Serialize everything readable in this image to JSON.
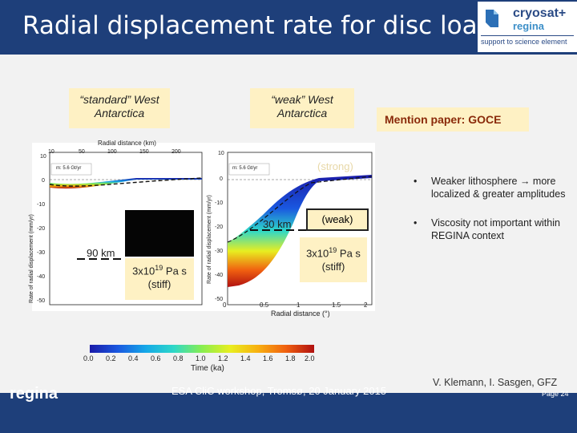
{
  "header": {
    "title": "Radial displacement rate for disc load",
    "logo_line1": "cryosat+",
    "logo_line2": "regina",
    "logo_sub": "support to science element"
  },
  "tags": {
    "standard": "“standard” West Antarctica",
    "weak": "“weak” West Antarctica",
    "mention": "Mention paper: GOCE"
  },
  "plot_left": {
    "top_axis_label": "Radial distance (km)",
    "top_ticks": [
      "10",
      "50",
      "100",
      "150",
      "200"
    ],
    "y_label": "Rate of radial displacement (mm/yr)",
    "y_ticks": [
      "10",
      "0",
      "-10",
      "-20",
      "-30",
      "-40",
      "-50"
    ],
    "legend": "m: 5.6 Gt/yr"
  },
  "plot_right": {
    "y_label": "Rate of radial displacement (mm/yr)",
    "y_ticks": [
      "10",
      "0",
      "-10",
      "-20",
      "-30",
      "-40",
      "-50"
    ],
    "x_ticks": [
      "0.5",
      "1",
      "1.5",
      "2"
    ],
    "x_label": "Radial distance (°)",
    "legend": "m: 5.6 Gt/yr"
  },
  "overlays": {
    "strong": "(strong)",
    "weak": "(weak)",
    "km30": "30 km",
    "km90": "90 km",
    "visc_left": "3x10",
    "visc_left_exp": "19",
    "visc_left_unit": " Pa s",
    "stiff_left": "(stiff)",
    "visc_right": "3x10",
    "visc_right_exp": "19",
    "visc_right_unit": " Pa s",
    "stiff_right": "(stiff)"
  },
  "colorbar": {
    "ticks": [
      "0.0",
      "0.2",
      "0.4",
      "0.6",
      "0.8",
      "1.0",
      "1.2",
      "1.4",
      "1.6",
      "1.8",
      "2.0"
    ],
    "label": "Time (ka)"
  },
  "bullets": [
    "Weaker lithosphere → more localized & greater amplitudes",
    "Viscosity not important within REGINA context"
  ],
  "credit": "V. Klemann, I. Sasgen, GFZ",
  "footer": {
    "logo": "regina",
    "center": "ESA CliC workshop, Tromsø, 20 January 2015",
    "page": "Page 24"
  }
}
